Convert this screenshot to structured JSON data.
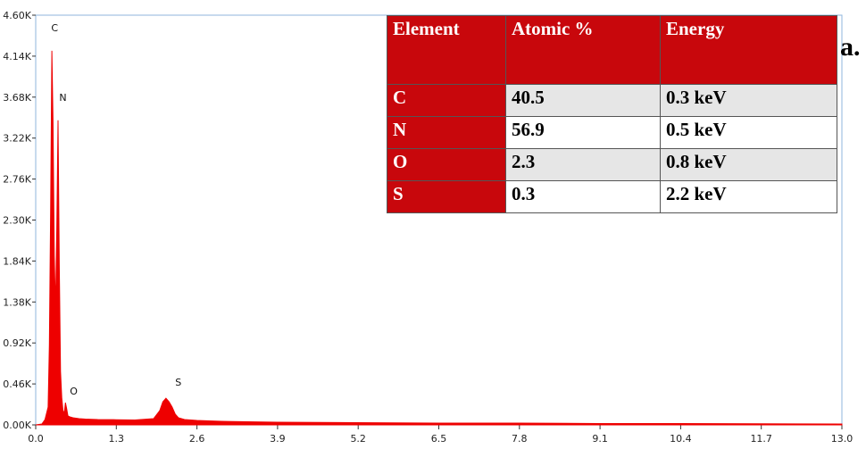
{
  "chart_data": {
    "type": "line",
    "title": "",
    "xlabel": "",
    "ylabel": "",
    "xlim": [
      0,
      13
    ],
    "ylim": [
      0,
      4600
    ],
    "x_ticks": [
      "0.0",
      "1.3",
      "2.6",
      "3.9",
      "5.2",
      "6.5",
      "7.8",
      "9.1",
      "10.4",
      "11.7",
      "13.0"
    ],
    "y_ticks": [
      "0.00K",
      "0.46K",
      "0.92K",
      "1.38K",
      "1.84K",
      "2.30K",
      "2.76K",
      "3.22K",
      "3.68K",
      "4.14K",
      "4.60K"
    ],
    "series_color": "#ee0000",
    "series": [
      {
        "x": [
          0.0,
          0.1,
          0.15,
          0.2,
          0.22,
          0.24,
          0.26,
          0.28,
          0.3,
          0.32,
          0.34,
          0.36,
          0.38,
          0.4,
          0.42,
          0.44,
          0.46,
          0.48,
          0.5,
          0.52,
          0.55,
          0.6,
          0.7,
          0.8,
          1.0,
          1.3,
          1.6,
          1.9,
          2.0,
          2.05,
          2.1,
          2.15,
          2.2,
          2.25,
          2.3,
          2.4,
          2.6,
          3.0,
          3.9,
          5.2,
          6.5,
          7.8,
          9.1,
          10.4,
          11.7,
          13.0
        ],
        "y": [
          0,
          10,
          60,
          200,
          900,
          2400,
          4200,
          3400,
          1900,
          1300,
          2200,
          3420,
          1800,
          600,
          300,
          160,
          130,
          250,
          180,
          100,
          90,
          80,
          70,
          65,
          60,
          58,
          55,
          70,
          160,
          260,
          300,
          260,
          200,
          120,
          80,
          60,
          50,
          40,
          30,
          25,
          20,
          20,
          15,
          15,
          12,
          10
        ]
      }
    ],
    "peak_labels": [
      {
        "text": "C",
        "x": 0.25,
        "y": 4420
      },
      {
        "text": "N",
        "x": 0.38,
        "y": 3640
      },
      {
        "text": "O",
        "x": 0.55,
        "y": 340
      },
      {
        "text": "S",
        "x": 2.25,
        "y": 440
      }
    ],
    "grid": false
  },
  "panel_label": "a.",
  "table": {
    "headers": [
      "Element",
      "Atomic %",
      "Energy"
    ],
    "rows": [
      {
        "element": "C",
        "atomic": "40.5",
        "energy": "0.3 keV"
      },
      {
        "element": "N",
        "atomic": "56.9",
        "energy": "0.5 keV"
      },
      {
        "element": "O",
        "atomic": "2.3",
        "energy": "0.8 keV"
      },
      {
        "element": "S",
        "atomic": "0.3",
        "energy": "2.2 keV"
      }
    ]
  }
}
